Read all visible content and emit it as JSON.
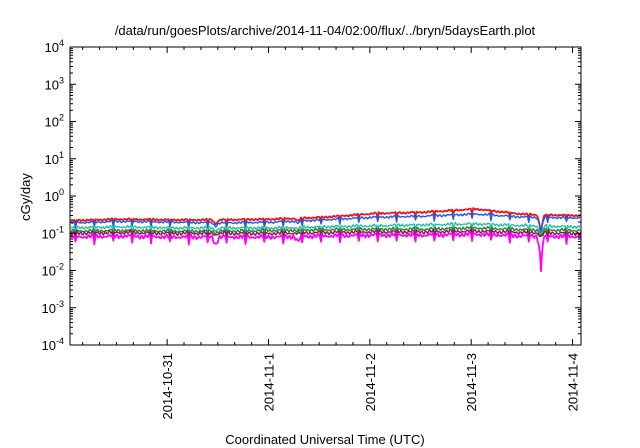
{
  "chart_data": {
    "type": "line",
    "title": "/data/run/goesPlots/archive/2014-11-04/02:00/flux/../bryn/5daysEarth.plot",
    "xlabel": "Coordinated Universal Time (UTC)",
    "ylabel": "cGy/day",
    "yscale": "log",
    "ylim": [
      0.0001,
      10000
    ],
    "yticks": [
      {
        "value": 0.0001,
        "base": "10",
        "exp": "-4"
      },
      {
        "value": 0.001,
        "base": "10",
        "exp": "-3"
      },
      {
        "value": 0.01,
        "base": "10",
        "exp": "-2"
      },
      {
        "value": 0.1,
        "base": "10",
        "exp": "-1"
      },
      {
        "value": 1,
        "base": "10",
        "exp": "0"
      },
      {
        "value": 10,
        "base": "10",
        "exp": "1"
      },
      {
        "value": 100,
        "base": "10",
        "exp": "2"
      },
      {
        "value": 1000,
        "base": "10",
        "exp": "3"
      },
      {
        "value": 10000,
        "base": "10",
        "exp": "4"
      }
    ],
    "xlim": [
      "2014-10-30T01:00",
      "2014-11-04T02:00"
    ],
    "xticks": [
      "2014-10-31",
      "2014-11-1",
      "2014-11-2",
      "2014-11-3",
      "2014-11-4"
    ],
    "grid": false,
    "legend": "none",
    "x": [
      "2014-10-30T01:00",
      "2014-10-30T13:00",
      "2014-10-31T01:00",
      "2014-10-31T13:00",
      "2014-11-01T01:00",
      "2014-11-01T13:00",
      "2014-11-02T01:00",
      "2014-11-02T13:00",
      "2014-11-03T01:00",
      "2014-11-03T13:00",
      "2014-11-04T01:00"
    ],
    "series": [
      {
        "color": "#e8141c",
        "values": [
          0.22,
          0.24,
          0.23,
          0.23,
          0.24,
          0.27,
          0.34,
          0.37,
          0.45,
          0.32,
          0.3
        ]
      },
      {
        "color": "#2255ee",
        "values": [
          0.19,
          0.21,
          0.2,
          0.19,
          0.2,
          0.23,
          0.27,
          0.29,
          0.33,
          0.27,
          0.26
        ]
      },
      {
        "color": "#20c0a0",
        "values": [
          0.14,
          0.15,
          0.14,
          0.14,
          0.14,
          0.15,
          0.16,
          0.17,
          0.18,
          0.16,
          0.15
        ]
      },
      {
        "color": "#2e7d32",
        "values": [
          0.115,
          0.12,
          0.115,
          0.115,
          0.12,
          0.125,
          0.13,
          0.13,
          0.14,
          0.125,
          0.12
        ]
      },
      {
        "color": "#8b1a4a",
        "values": [
          0.1,
          0.105,
          0.1,
          0.1,
          0.1,
          0.105,
          0.11,
          0.11,
          0.115,
          0.105,
          0.1
        ]
      },
      {
        "color": "#ff00ff",
        "values": [
          0.08,
          0.085,
          0.08,
          0.08,
          0.08,
          0.085,
          0.09,
          0.09,
          0.095,
          0.085,
          0.082
        ]
      }
    ],
    "dips": [
      {
        "x": "2014-10-31T11:30",
        "factor": 0.6
      },
      {
        "x": "2014-11-01T07:00",
        "factor": 0.7
      },
      {
        "x": "2014-11-03T16:30",
        "factor": 0.09
      }
    ]
  }
}
